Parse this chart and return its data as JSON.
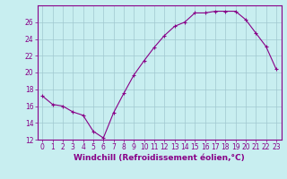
{
  "x": [
    0,
    1,
    2,
    3,
    4,
    5,
    6,
    7,
    8,
    9,
    10,
    11,
    12,
    13,
    14,
    15,
    16,
    17,
    18,
    19,
    20,
    21,
    22,
    23
  ],
  "y": [
    17.2,
    16.2,
    16.0,
    15.3,
    14.9,
    13.0,
    12.2,
    15.2,
    17.5,
    19.7,
    21.4,
    23.0,
    24.4,
    25.5,
    26.0,
    27.1,
    27.1,
    27.3,
    27.3,
    27.3,
    26.3,
    24.7,
    23.1,
    20.4
  ],
  "line_color": "#880088",
  "marker": "+",
  "marker_color": "#880088",
  "bg_color": "#c8eef0",
  "grid_color": "#a0c8d0",
  "xlabel": "Windchill (Refroidissement éolien,°C)",
  "xlim": [
    -0.5,
    23.5
  ],
  "ylim": [
    12,
    28
  ],
  "yticks": [
    12,
    14,
    16,
    18,
    20,
    22,
    24,
    26
  ],
  "xticks": [
    0,
    1,
    2,
    3,
    4,
    5,
    6,
    7,
    8,
    9,
    10,
    11,
    12,
    13,
    14,
    15,
    16,
    17,
    18,
    19,
    20,
    21,
    22,
    23
  ],
  "tick_label_fontsize": 5.5,
  "xlabel_fontsize": 6.5,
  "line_width": 0.8,
  "marker_size": 3.5
}
